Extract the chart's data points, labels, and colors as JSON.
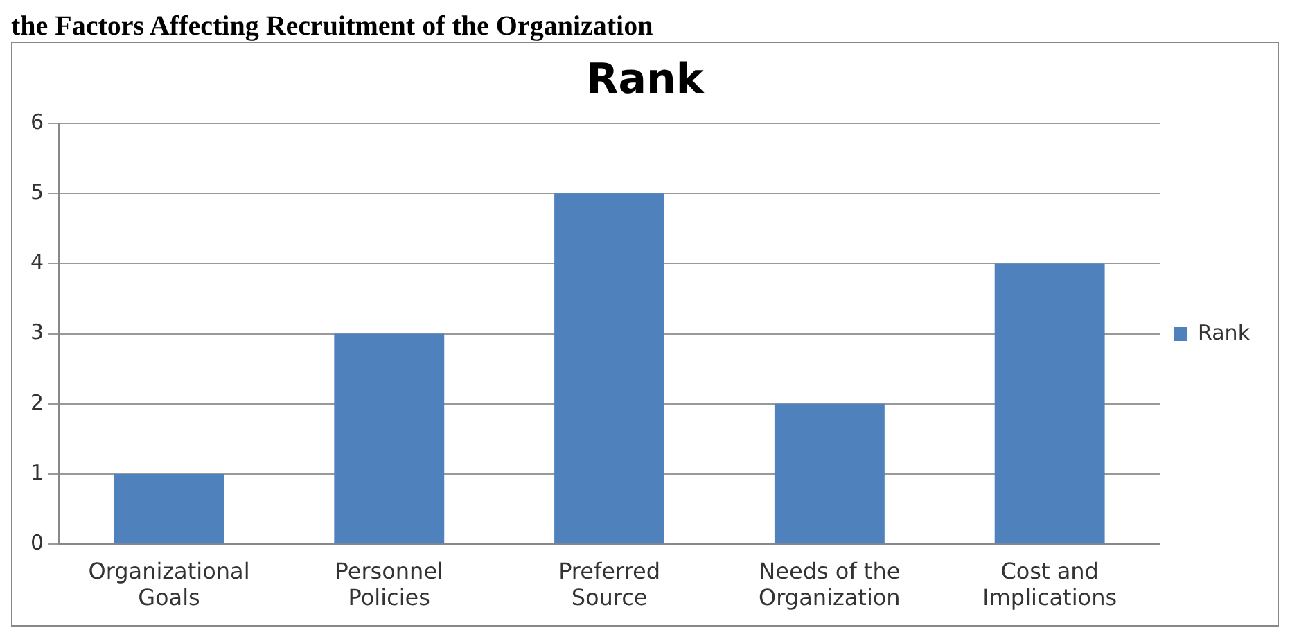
{
  "chart_data": {
    "type": "bar",
    "title": "Rank",
    "annotations": [
      "the Factors Affecting Recruitment of the Organization"
    ],
    "categories": [
      "Organizational Goals",
      "Personnel Policies",
      "Preferred Source",
      "Needs of the Organization",
      "Cost and Implications"
    ],
    "series": [
      {
        "name": "Rank",
        "color": "#4f81bd",
        "values": [
          1,
          3,
          5,
          2,
          4
        ]
      }
    ],
    "ylim": [
      0,
      6
    ],
    "yticks": [
      0,
      1,
      2,
      3,
      4,
      5,
      6
    ],
    "grid": "y",
    "legend": "right"
  }
}
